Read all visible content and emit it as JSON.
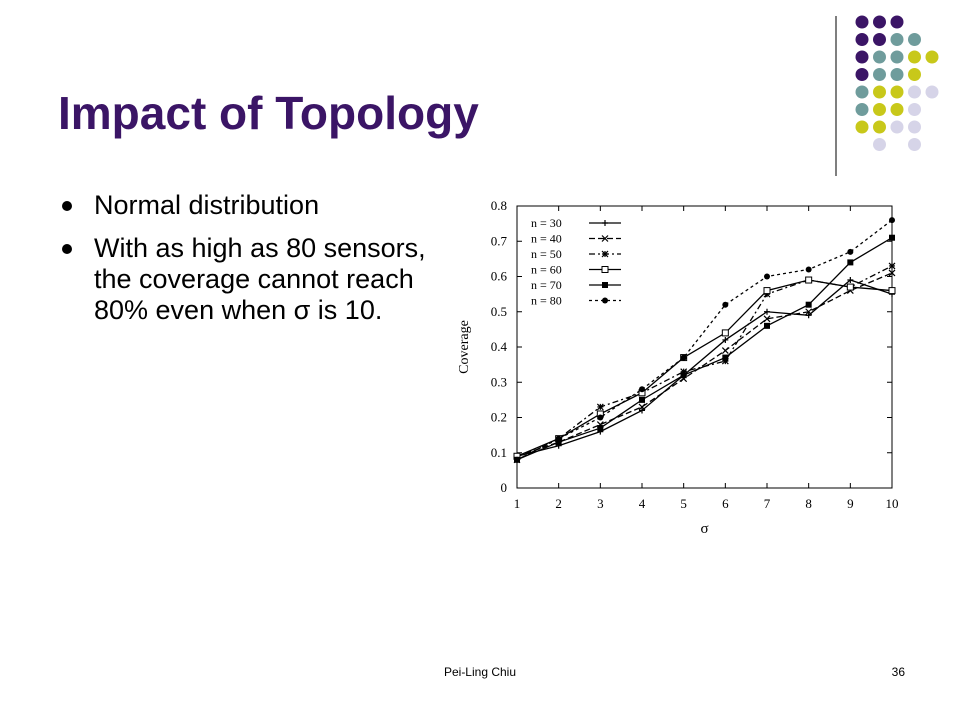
{
  "slide": {
    "title": "Impact of Topology",
    "bullets": [
      "Normal distribution",
      "With as high as 80 sensors, the coverage cannot reach 80% even when σ is 10."
    ],
    "footer_author": "Pei-Ling Chiu",
    "page_number": "36"
  },
  "decor": {
    "dot_grid": [
      [
        "purple",
        "purple",
        "purple",
        "none",
        "none"
      ],
      [
        "purple",
        "purple",
        "teal",
        "teal",
        "none"
      ],
      [
        "purple",
        "teal",
        "teal",
        "lime",
        "lime"
      ],
      [
        "purple",
        "teal",
        "teal",
        "lime",
        "none"
      ],
      [
        "teal",
        "lime",
        "lime",
        "lavender",
        "lavender"
      ],
      [
        "teal",
        "lime",
        "lime",
        "lavender",
        "none"
      ],
      [
        "lime",
        "lime",
        "lavender",
        "lavender",
        "none"
      ],
      [
        "none",
        "lavender",
        "none",
        "lavender",
        "none"
      ]
    ],
    "colors": {
      "purple": "#3b1566",
      "teal": "#6f9c9c",
      "lime": "#c8c81a",
      "lavender": "#d6d4e8",
      "title": "#3b1566"
    }
  },
  "chart_data": {
    "type": "line",
    "xlabel": "σ",
    "ylabel": "Coverage",
    "x": [
      1,
      2,
      3,
      4,
      5,
      6,
      7,
      8,
      9,
      10
    ],
    "xlim": [
      1,
      10
    ],
    "ylim": [
      0,
      0.8
    ],
    "xticks": [
      1,
      2,
      3,
      4,
      5,
      6,
      7,
      8,
      9,
      10
    ],
    "yticks": [
      0,
      0.1,
      0.2,
      0.3,
      0.4,
      0.5,
      0.6,
      0.7,
      0.8
    ],
    "legend_position": "top-left",
    "grid": false,
    "series": [
      {
        "name": "n = 30",
        "marker": "plus",
        "dash": "",
        "values": [
          0.09,
          0.12,
          0.16,
          0.22,
          0.32,
          0.42,
          0.5,
          0.49,
          0.59,
          0.55
        ]
      },
      {
        "name": "n = 40",
        "marker": "x",
        "dash": "6,3",
        "values": [
          0.09,
          0.13,
          0.18,
          0.23,
          0.31,
          0.39,
          0.48,
          0.5,
          0.56,
          0.61
        ]
      },
      {
        "name": "n = 50",
        "marker": "star",
        "dash": "6,3,2,3",
        "values": [
          0.08,
          0.14,
          0.23,
          0.27,
          0.33,
          0.36,
          0.55,
          0.59,
          0.57,
          0.63
        ]
      },
      {
        "name": "n = 60",
        "marker": "square",
        "dash": "",
        "values": [
          0.09,
          0.14,
          0.21,
          0.27,
          0.37,
          0.44,
          0.56,
          0.59,
          0.57,
          0.56
        ]
      },
      {
        "name": "n = 70",
        "marker": "filled-square",
        "dash": "",
        "values": [
          0.08,
          0.13,
          0.17,
          0.25,
          0.32,
          0.37,
          0.46,
          0.52,
          0.64,
          0.71
        ]
      },
      {
        "name": "n = 80",
        "marker": "filled-circle",
        "dash": "3,3",
        "values": [
          0.08,
          0.14,
          0.2,
          0.28,
          0.37,
          0.52,
          0.6,
          0.62,
          0.67,
          0.76
        ]
      }
    ]
  }
}
